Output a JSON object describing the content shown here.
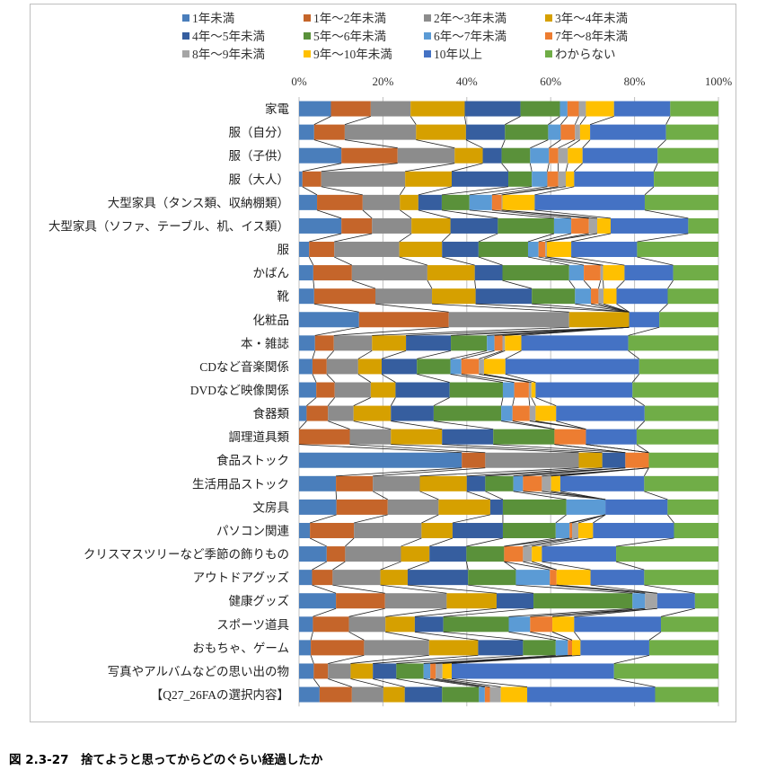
{
  "caption": "図 2.3-27　捨てようと思ってからどのぐらい経過したか",
  "chart_data": {
    "type": "bar",
    "orientation": "horizontal",
    "stacked": "percent",
    "title": "",
    "xlim": [
      0,
      100
    ],
    "x_ticks": [
      "0%",
      "20%",
      "40%",
      "60%",
      "80%",
      "100%"
    ],
    "grid": "vertical",
    "legend_position": "top",
    "series_lines": true,
    "categories": [
      "家電",
      "服（自分）",
      "服（子供）",
      "服（大人）",
      "大型家具（タンス類、収納棚類）",
      "大型家具（ソファ、テーブル、机、イス類）",
      "服",
      "かばん",
      "靴",
      "化粧品",
      "本・雑誌",
      "CDなど音楽関係",
      "DVDなど映像関係",
      "食器類",
      "調理道具類",
      "食品ストック",
      "生活用品ストック",
      "文房具",
      "パソコン関連",
      "クリスマスツリーなど季節の飾りもの",
      "アウトドアグッズ",
      "健康グッズ",
      "スポーツ道具",
      "おもちゃ、ゲーム",
      "写真やアルバムなどの思い出の物",
      "【Q27_26FAの選択内容】"
    ],
    "series": [
      {
        "name": "1年未満",
        "color": "#4A7EBB",
        "values": [
          7.6,
          3.6,
          10.1,
          0.8,
          4.3,
          10.1,
          2.4,
          3.4,
          3.6,
          14.3,
          3.8,
          3.2,
          4.1,
          1.8,
          0,
          38.8,
          8.8,
          8.9,
          2.6,
          6.6,
          3.1,
          8.8,
          3.3,
          2.8,
          3.5,
          4.9
        ]
      },
      {
        "name": "1年～2年未満",
        "color": "#C5652A",
        "values": [
          9.5,
          7.3,
          13.4,
          4.5,
          10.9,
          7.3,
          6.0,
          9.2,
          14.6,
          21.4,
          4.5,
          3.4,
          4.4,
          5.1,
          12.1,
          5.6,
          8.8,
          12.2,
          10.5,
          4.4,
          4.9,
          11.7,
          8.6,
          12.7,
          3.4,
          7.7
        ]
      },
      {
        "name": "2年～3年未満",
        "color": "#8C8C8C",
        "values": [
          9.5,
          17.0,
          13.6,
          20.0,
          8.9,
          9.4,
          15.5,
          18.0,
          13.5,
          28.7,
          9.1,
          7.5,
          8.6,
          6.1,
          9.8,
          22.3,
          11.2,
          12.1,
          16.1,
          13.3,
          11.4,
          14.7,
          8.7,
          15.5,
          5.4,
          7.5
        ]
      },
      {
        "name": "3年～4年未満",
        "color": "#D6A000",
        "values": [
          12.9,
          11.9,
          6.7,
          11.1,
          4.4,
          9.3,
          10.2,
          11.3,
          10.4,
          14.3,
          8.1,
          5.6,
          5.9,
          8.9,
          12.2,
          5.6,
          11.2,
          12.3,
          7.4,
          6.8,
          6.5,
          11.9,
          7.0,
          11.7,
          5.3,
          5.1
        ]
      },
      {
        "name": "4年～5年未満",
        "color": "#365E9F",
        "values": [
          13.3,
          9.3,
          4.5,
          13.5,
          5.6,
          11.3,
          8.7,
          6.6,
          13.4,
          0,
          10.7,
          8.4,
          12.9,
          10.2,
          12.2,
          5.5,
          4.4,
          3.0,
          12.0,
          8.8,
          14.4,
          8.8,
          6.8,
          10.7,
          5.6,
          8.9
        ]
      },
      {
        "name": "5年～6年未満",
        "color": "#5A913A",
        "values": [
          9.4,
          10.3,
          6.8,
          5.6,
          6.6,
          13.4,
          11.8,
          15.9,
          10.3,
          0,
          8.6,
          8.0,
          12.7,
          16.1,
          14.6,
          0,
          6.7,
          15.1,
          12.6,
          9.0,
          11.4,
          23.6,
          15.6,
          7.8,
          6.5,
          8.8
        ]
      },
      {
        "name": "6年～7年未満",
        "color": "#5B9BD5",
        "values": [
          1.8,
          3.0,
          4.5,
          3.7,
          5.4,
          4.1,
          2.5,
          3.5,
          3.8,
          0,
          1.8,
          2.6,
          2.7,
          2.7,
          0,
          0,
          2.3,
          9.3,
          3.3,
          0,
          8.1,
          3.0,
          5.1,
          2.9,
          1.6,
          1.4
        ]
      },
      {
        "name": "7年～8年未満",
        "color": "#ED7D31",
        "values": [
          2.7,
          3.4,
          2.2,
          2.6,
          2.3,
          4.2,
          1.6,
          4.0,
          1.8,
          0,
          1.9,
          4.2,
          3.5,
          4.1,
          7.5,
          5.6,
          4.5,
          0,
          0.6,
          4.5,
          1.6,
          0,
          5.3,
          1.0,
          1.3,
          1.2
        ]
      },
      {
        "name": "8年～9年未満",
        "color": "#A5A5A5",
        "values": [
          1.7,
          1.2,
          2.3,
          1.8,
          0.2,
          2.0,
          0.4,
          0.6,
          1.2,
          0,
          0.6,
          1.2,
          0.6,
          1.4,
          0,
          0,
          2.2,
          0,
          1.5,
          2.1,
          0,
          2.9,
          0,
          0,
          1.6,
          2.6
        ]
      },
      {
        "name": "9年～10年未満",
        "color": "#FFC000",
        "values": [
          6.7,
          2.4,
          3.5,
          2.0,
          7.7,
          3.2,
          5.8,
          5.1,
          3.1,
          0,
          3.9,
          5.1,
          1.0,
          4.9,
          0,
          0,
          2.2,
          0,
          3.5,
          2.4,
          8.1,
          0,
          5.2,
          2.0,
          2.2,
          6.3
        ]
      },
      {
        "name": "10年以上",
        "color": "#4472C4",
        "values": [
          13.4,
          18.1,
          17.9,
          19.0,
          26.3,
          18.5,
          15.7,
          11.6,
          12.2,
          7.2,
          25.5,
          31.9,
          23.1,
          21.1,
          12.1,
          0,
          20.0,
          14.8,
          19.3,
          17.7,
          12.8,
          9.0,
          20.7,
          16.4,
          38.7,
          30.5
        ]
      },
      {
        "name": "わからない",
        "color": "#70AD47",
        "values": [
          11.5,
          12.5,
          14.5,
          15.4,
          17.6,
          7.2,
          19.4,
          10.8,
          12.1,
          14.1,
          21.5,
          18.9,
          20.5,
          17.6,
          19.5,
          16.6,
          17.7,
          12.1,
          10.6,
          24.4,
          17.7,
          5.6,
          13.7,
          16.5,
          24.9,
          15.1
        ]
      }
    ]
  }
}
